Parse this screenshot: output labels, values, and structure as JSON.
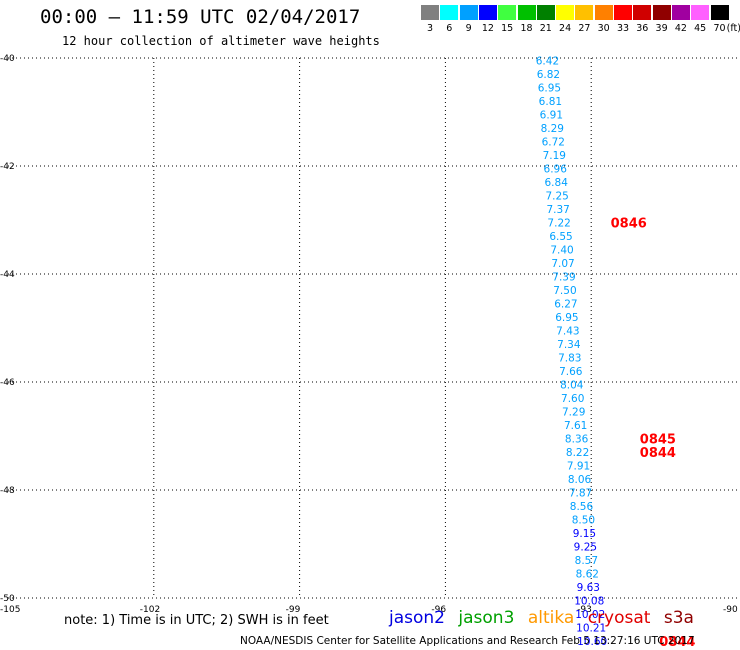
{
  "header": {
    "title": "00:00 – 11:59 UTC 02/04/2017",
    "subtitle": "12 hour collection of altimeter wave heights"
  },
  "legend": {
    "unit": "(ft)",
    "bins": [
      {
        "label": "3",
        "color": "#808080"
      },
      {
        "label": "6",
        "color": "#00ffff"
      },
      {
        "label": "9",
        "color": "#00a0ff"
      },
      {
        "label": "12",
        "color": "#0000ff"
      },
      {
        "label": "15",
        "color": "#40ff40"
      },
      {
        "label": "18",
        "color": "#00c000"
      },
      {
        "label": "21",
        "color": "#008000"
      },
      {
        "label": "24",
        "color": "#ffff00"
      },
      {
        "label": "27",
        "color": "#ffc000"
      },
      {
        "label": "30",
        "color": "#ff8000"
      },
      {
        "label": "33",
        "color": "#ff0000"
      },
      {
        "label": "36",
        "color": "#d00000"
      },
      {
        "label": "39",
        "color": "#900000"
      },
      {
        "label": "42",
        "color": "#a000a0"
      },
      {
        "label": "45",
        "color": "#ff60ff"
      },
      {
        "label": "70",
        "color": "#000000"
      }
    ]
  },
  "chart_data": {
    "type": "scatter",
    "xlim": [
      -105,
      -90
    ],
    "ylim": [
      -50,
      -40
    ],
    "x_ticks": [
      "-105",
      "-102",
      "-99",
      "-96",
      "-93",
      "-90"
    ],
    "x_tick_values": [
      -105,
      -102,
      -99,
      -96,
      -93,
      -90
    ],
    "y_ticks": [
      "-40",
      "-42",
      "-44",
      "-46",
      "-48",
      "-50"
    ],
    "y_tick_values": [
      -40,
      -42,
      -44,
      -46,
      -48,
      -50
    ],
    "grid": true,
    "points": [
      {
        "lon": -93.9,
        "lat": -40.05,
        "value": "6.42"
      },
      {
        "lon": -93.88,
        "lat": -40.3,
        "value": "6.82"
      },
      {
        "lon": -93.86,
        "lat": -40.55,
        "value": "6.95"
      },
      {
        "lon": -93.84,
        "lat": -40.8,
        "value": "6.81"
      },
      {
        "lon": -93.82,
        "lat": -41.05,
        "value": "6.91"
      },
      {
        "lon": -93.8,
        "lat": -41.3,
        "value": "8.29"
      },
      {
        "lon": -93.78,
        "lat": -41.55,
        "value": "6.72"
      },
      {
        "lon": -93.76,
        "lat": -41.8,
        "value": "7.19"
      },
      {
        "lon": -93.74,
        "lat": -42.05,
        "value": "6.96"
      },
      {
        "lon": -93.72,
        "lat": -42.3,
        "value": "6.84"
      },
      {
        "lon": -93.7,
        "lat": -42.55,
        "value": "7.25"
      },
      {
        "lon": -93.68,
        "lat": -42.8,
        "value": "7.37"
      },
      {
        "lon": -93.66,
        "lat": -43.05,
        "value": "7.22"
      },
      {
        "lon": -93.62,
        "lat": -43.3,
        "value": "6.55"
      },
      {
        "lon": -93.6,
        "lat": -43.55,
        "value": "7.40"
      },
      {
        "lon": -93.58,
        "lat": -43.8,
        "value": "7.07"
      },
      {
        "lon": -93.56,
        "lat": -44.05,
        "value": "7.39"
      },
      {
        "lon": -93.54,
        "lat": -44.3,
        "value": "7.50"
      },
      {
        "lon": -93.52,
        "lat": -44.55,
        "value": "6.27"
      },
      {
        "lon": -93.5,
        "lat": -44.8,
        "value": "6.95"
      },
      {
        "lon": -93.48,
        "lat": -45.05,
        "value": "7.43"
      },
      {
        "lon": -93.46,
        "lat": -45.3,
        "value": "7.34"
      },
      {
        "lon": -93.44,
        "lat": -45.55,
        "value": "7.83"
      },
      {
        "lon": -93.42,
        "lat": -45.8,
        "value": "7.66"
      },
      {
        "lon": -93.4,
        "lat": -46.05,
        "value": "8.04"
      },
      {
        "lon": -93.38,
        "lat": -46.3,
        "value": "7.60"
      },
      {
        "lon": -93.36,
        "lat": -46.55,
        "value": "7.29"
      },
      {
        "lon": -93.32,
        "lat": -46.8,
        "value": "7.61"
      },
      {
        "lon": -93.3,
        "lat": -47.05,
        "value": "8.36"
      },
      {
        "lon": -93.28,
        "lat": -47.3,
        "value": "8.22"
      },
      {
        "lon": -93.26,
        "lat": -47.55,
        "value": "7.91"
      },
      {
        "lon": -93.24,
        "lat": -47.8,
        "value": "8.06"
      },
      {
        "lon": -93.22,
        "lat": -48.05,
        "value": "7.87"
      },
      {
        "lon": -93.2,
        "lat": -48.3,
        "value": "8.56"
      },
      {
        "lon": -93.16,
        "lat": -48.55,
        "value": "8.50"
      },
      {
        "lon": -93.14,
        "lat": -48.8,
        "value": "9.15"
      },
      {
        "lon": -93.12,
        "lat": -49.05,
        "value": "9.25"
      },
      {
        "lon": -93.1,
        "lat": -49.3,
        "value": "8.57"
      },
      {
        "lon": -93.08,
        "lat": -49.55,
        "value": "8.62"
      },
      {
        "lon": -93.06,
        "lat": -49.8,
        "value": "9.63"
      },
      {
        "lon": -93.04,
        "lat": -50.05,
        "value": "10.08"
      },
      {
        "lon": -93.02,
        "lat": -50.3,
        "value": "10.02"
      },
      {
        "lon": -93.0,
        "lat": -50.55,
        "value": "10.21"
      },
      {
        "lon": -92.98,
        "lat": -50.8,
        "value": "10.60"
      }
    ],
    "time_labels": [
      {
        "lon": -92.6,
        "lat": -43.05,
        "text": "0846"
      },
      {
        "lon": -92.0,
        "lat": -47.05,
        "text": "0845"
      },
      {
        "lon": -92.0,
        "lat": -47.3,
        "text": "0844"
      },
      {
        "lon": -91.6,
        "lat": -50.8,
        "text": "0844"
      }
    ]
  },
  "footer": {
    "note": "note: 1) Time is in UTC; 2) SWH is in feet",
    "satellites": [
      {
        "name": "jason2",
        "color": "#0000e0"
      },
      {
        "name": "jason3",
        "color": "#00a000"
      },
      {
        "name": "altika",
        "color": "#ff9900"
      },
      {
        "name": "cryosat",
        "color": "#e00000"
      },
      {
        "name": "s3a",
        "color": "#900000"
      }
    ],
    "credit": "NOAA/NESDIS Center for Satellite Applications and Research    Feb  5 13:27:16 UTC 2017"
  }
}
